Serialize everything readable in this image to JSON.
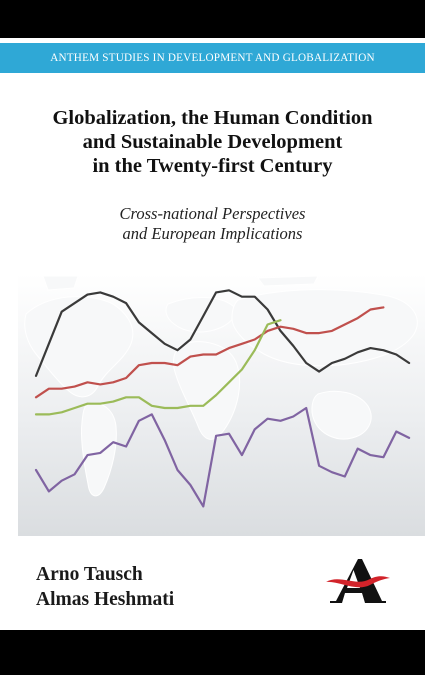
{
  "series_name": "ANTHEM STUDIES IN DEVELOPMENT AND GLOBALIZATION",
  "title_lines": [
    "Globalization, the Human Condition",
    "and Sustainable Development",
    "in the Twenty-first Century"
  ],
  "subtitle_lines": [
    "Cross-national Perspectives",
    "and European Implications"
  ],
  "authors": [
    "Arno Tausch",
    "Almas Heshmati"
  ],
  "colors": {
    "background": "#000000",
    "cover": "#ffffff",
    "series_bar": "#2fa8d6",
    "logo_red": "#d2232a"
  },
  "chart_data": {
    "type": "line",
    "ylim": [
      0,
      100
    ],
    "xlim": [
      0,
      30
    ],
    "grid": false,
    "series": [
      {
        "color": "#3a3a3a",
        "points": [
          [
            0,
            58
          ],
          [
            2,
            88
          ],
          [
            4,
            96
          ],
          [
            5,
            97
          ],
          [
            6,
            95
          ],
          [
            7,
            92
          ],
          [
            8,
            83
          ],
          [
            9,
            78
          ],
          [
            10,
            73
          ],
          [
            11,
            70
          ],
          [
            12,
            75
          ],
          [
            13,
            86
          ],
          [
            14,
            97
          ],
          [
            15,
            98
          ],
          [
            16,
            95
          ],
          [
            17,
            95
          ],
          [
            18,
            89
          ],
          [
            19,
            79
          ],
          [
            20,
            72
          ],
          [
            21,
            64
          ],
          [
            22,
            60
          ],
          [
            23,
            64
          ],
          [
            24,
            66
          ],
          [
            25,
            69
          ],
          [
            26,
            71
          ],
          [
            27,
            70
          ],
          [
            28,
            68
          ],
          [
            29,
            64
          ]
        ]
      },
      {
        "color": "#c0504d",
        "points": [
          [
            0,
            48
          ],
          [
            1,
            52
          ],
          [
            2,
            52
          ],
          [
            3,
            53
          ],
          [
            4,
            55
          ],
          [
            5,
            54
          ],
          [
            6,
            55
          ],
          [
            7,
            57
          ],
          [
            8,
            63
          ],
          [
            9,
            64
          ],
          [
            10,
            64
          ],
          [
            11,
            63
          ],
          [
            12,
            67
          ],
          [
            13,
            68
          ],
          [
            14,
            68
          ],
          [
            15,
            71
          ],
          [
            16,
            73
          ],
          [
            17,
            75
          ],
          [
            18,
            79
          ],
          [
            19,
            81
          ],
          [
            20,
            80
          ],
          [
            21,
            78
          ],
          [
            22,
            78
          ],
          [
            23,
            79
          ],
          [
            24,
            82
          ],
          [
            25,
            85
          ],
          [
            26,
            89
          ],
          [
            27,
            90
          ]
        ]
      },
      {
        "color": "#9bbb59",
        "points": [
          [
            0,
            40
          ],
          [
            1,
            40
          ],
          [
            2,
            41
          ],
          [
            3,
            43
          ],
          [
            4,
            45
          ],
          [
            5,
            45
          ],
          [
            6,
            46
          ],
          [
            7,
            48
          ],
          [
            8,
            48
          ],
          [
            9,
            44
          ],
          [
            10,
            43
          ],
          [
            11,
            43
          ],
          [
            12,
            44
          ],
          [
            13,
            44
          ],
          [
            14,
            49
          ],
          [
            15,
            55
          ],
          [
            16,
            61
          ],
          [
            17,
            70
          ],
          [
            18,
            82
          ],
          [
            19,
            84
          ]
        ]
      },
      {
        "color": "#8064a2",
        "points": [
          [
            0,
            14
          ],
          [
            1,
            4
          ],
          [
            2,
            9
          ],
          [
            3,
            12
          ],
          [
            4,
            21
          ],
          [
            5,
            22
          ],
          [
            6,
            27
          ],
          [
            7,
            25
          ],
          [
            8,
            37
          ],
          [
            9,
            40
          ],
          [
            10,
            28
          ],
          [
            11,
            14
          ],
          [
            12,
            7
          ],
          [
            13,
            -3
          ],
          [
            14,
            30
          ],
          [
            15,
            31
          ],
          [
            16,
            21
          ],
          [
            17,
            33
          ],
          [
            18,
            38
          ],
          [
            19,
            37
          ],
          [
            20,
            39
          ],
          [
            21,
            43
          ],
          [
            22,
            16
          ],
          [
            23,
            13
          ],
          [
            24,
            11
          ],
          [
            25,
            24
          ],
          [
            26,
            21
          ],
          [
            27,
            20
          ],
          [
            28,
            32
          ],
          [
            29,
            29
          ]
        ]
      }
    ]
  }
}
